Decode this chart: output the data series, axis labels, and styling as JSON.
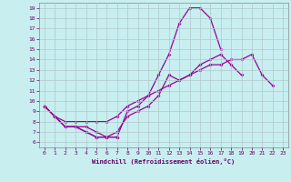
{
  "xlabel": "Windchill (Refroidissement éolien,°C)",
  "xlim": [
    -0.5,
    23.5
  ],
  "ylim": [
    5.5,
    19.5
  ],
  "xticks": [
    0,
    1,
    2,
    3,
    4,
    5,
    6,
    7,
    8,
    9,
    10,
    11,
    12,
    13,
    14,
    15,
    16,
    17,
    18,
    19,
    20,
    21,
    22,
    23
  ],
  "yticks": [
    6,
    7,
    8,
    9,
    10,
    11,
    12,
    13,
    14,
    15,
    16,
    17,
    18,
    19
  ],
  "background_color": "#c8eef0",
  "line_color": "#990099",
  "grid_color": "#b0c8cc",
  "lines": [
    [
      9.5,
      8.5,
      7.5,
      7.5,
      7.0,
      6.5,
      6.5,
      6.5,
      null,
      null,
      null,
      null,
      null,
      null,
      null,
      null,
      null,
      null,
      null,
      null,
      null,
      null,
      null,
      null
    ],
    [
      9.5,
      8.5,
      7.5,
      7.5,
      7.0,
      6.5,
      6.5,
      6.5,
      9.0,
      9.5,
      10.5,
      12.5,
      14.5,
      17.5,
      19.0,
      19.0,
      18.0,
      15.0,
      null,
      null,
      null,
      null,
      null,
      null
    ],
    [
      9.5,
      8.5,
      7.5,
      7.5,
      7.5,
      7.0,
      6.5,
      7.0,
      8.5,
      9.0,
      9.5,
      10.5,
      12.5,
      12.0,
      12.5,
      13.5,
      14.0,
      14.5,
      13.5,
      12.5,
      null,
      null,
      null,
      null
    ],
    [
      9.5,
      8.5,
      8.0,
      8.0,
      8.0,
      8.0,
      8.0,
      8.5,
      9.5,
      10.0,
      10.5,
      11.0,
      11.5,
      12.0,
      12.5,
      13.0,
      13.5,
      13.5,
      14.0,
      14.0,
      14.5,
      12.5,
      11.5,
      null
    ]
  ]
}
